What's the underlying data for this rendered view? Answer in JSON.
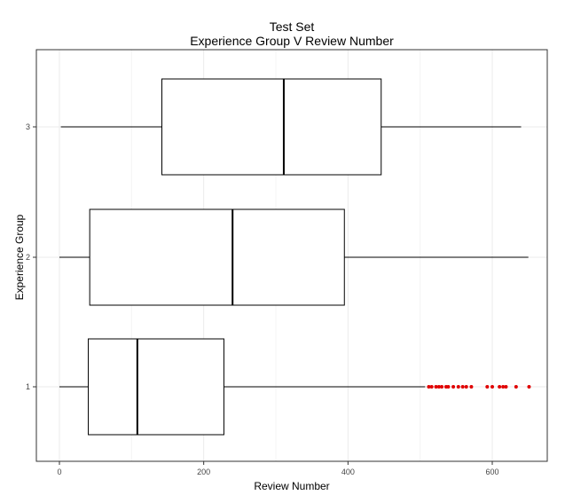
{
  "chart_data": {
    "type": "boxplot",
    "title": "Test Set",
    "subtitle": "Experience Group V Review Number",
    "xlabel": "Review Number",
    "ylabel": "Experience Group",
    "xlim": [
      -30,
      675
    ],
    "x_ticks": [
      0,
      200,
      400,
      600
    ],
    "x_tick_labels": [
      "0",
      "200",
      "400",
      "600"
    ],
    "grid": true,
    "orientation": "horizontal",
    "categories": [
      "1",
      "2",
      "3"
    ],
    "boxes": [
      {
        "group": "1",
        "whisker_low": 0,
        "q1": 40,
        "median": 108,
        "q3": 228,
        "whisker_high": 507,
        "outliers": [
          512,
          516,
          522,
          526,
          530,
          536,
          539,
          546,
          553,
          559,
          564,
          571,
          593,
          600,
          610,
          615,
          619,
          633,
          651
        ]
      },
      {
        "group": "2",
        "whisker_low": 0,
        "q1": 42,
        "median": 240,
        "q3": 395,
        "whisker_high": 650,
        "outliers": []
      },
      {
        "group": "3",
        "whisker_low": 2,
        "q1": 142,
        "median": 311,
        "q3": 446,
        "whisker_high": 640,
        "outliers": []
      }
    ],
    "colors": {
      "box_stroke": "#000000",
      "outlier": "#e00000",
      "grid": "#ebebeb",
      "panel_border": "#333333"
    }
  }
}
